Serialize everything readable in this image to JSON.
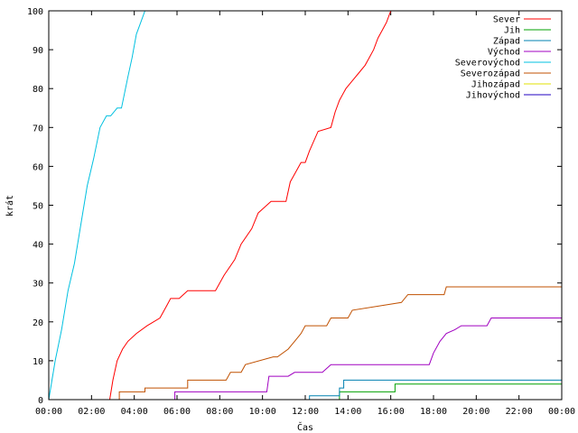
{
  "chart_data": {
    "type": "line",
    "title": "",
    "xlabel": "Čas",
    "ylabel": "krát",
    "xlim": [
      0,
      24
    ],
    "ylim": [
      0,
      100
    ],
    "xticks": [
      {
        "value": 0,
        "label": "00:00"
      },
      {
        "value": 2,
        "label": "02:00"
      },
      {
        "value": 4,
        "label": "04:00"
      },
      {
        "value": 6,
        "label": "06:00"
      },
      {
        "value": 8,
        "label": "08:00"
      },
      {
        "value": 10,
        "label": "10:00"
      },
      {
        "value": 12,
        "label": "12:00"
      },
      {
        "value": 14,
        "label": "14:00"
      },
      {
        "value": 16,
        "label": "16:00"
      },
      {
        "value": 18,
        "label": "18:00"
      },
      {
        "value": 20,
        "label": "20:00"
      },
      {
        "value": 22,
        "label": "22:00"
      },
      {
        "value": 24,
        "label": "00:00"
      }
    ],
    "yticks": [
      0,
      10,
      20,
      30,
      40,
      50,
      60,
      70,
      80,
      90,
      100
    ],
    "grid": false,
    "legend_position": "top-right",
    "series": [
      {
        "name": "Sever",
        "color": "#ff0000",
        "x": [
          2.85,
          3.0,
          3.2,
          3.45,
          3.7,
          4.1,
          4.6,
          4.9,
          5.2,
          5.5,
          5.7,
          6.1,
          6.5,
          7.8,
          8.2,
          8.7,
          9.0,
          9.5,
          9.8,
          10.0,
          10.4,
          11.1,
          11.3,
          11.5,
          11.8,
          12.0,
          12.2,
          12.6,
          13.2,
          13.4,
          13.6,
          13.9,
          14.2,
          14.5,
          14.8,
          15.0,
          15.2,
          15.4,
          15.6,
          15.8,
          16.0,
          16.2
        ],
        "y": [
          0,
          5,
          10,
          13,
          15,
          17,
          19,
          20,
          21,
          24,
          26,
          26,
          28,
          28,
          32,
          36,
          40,
          44,
          48,
          49,
          51,
          51,
          56,
          58,
          61,
          61,
          64,
          69,
          70,
          74,
          77,
          80,
          82,
          84,
          86,
          88,
          90,
          93,
          95,
          97,
          100,
          100
        ]
      },
      {
        "name": "Jih",
        "color": "#00a000",
        "x": [
          13.6,
          13.6,
          16.2,
          16.2,
          24
        ],
        "y": [
          0,
          2,
          2,
          4,
          4
        ]
      },
      {
        "name": "Západ",
        "color": "#0080b0",
        "x": [
          12.2,
          12.2,
          13.6,
          13.6,
          13.8,
          13.8,
          24
        ],
        "y": [
          0,
          1,
          1,
          3,
          3,
          5,
          5
        ]
      },
      {
        "name": "Východ",
        "color": "#a000c0",
        "x": [
          5.9,
          5.9,
          10.2,
          10.3,
          11.2,
          11.5,
          12.8,
          13.2,
          17.8,
          18.0,
          18.3,
          18.6,
          19.0,
          19.3,
          20.5,
          20.7,
          24
        ],
        "y": [
          0,
          2,
          2,
          6,
          6,
          7,
          7,
          9,
          9,
          12,
          15,
          17,
          18,
          19,
          19,
          21,
          21
        ]
      },
      {
        "name": "Severovýchod",
        "color": "#00c0e0",
        "x": [
          0,
          0.3,
          0.6,
          0.9,
          1.2,
          1.5,
          1.8,
          2.1,
          2.4,
          2.7,
          2.9,
          3.2,
          3.4,
          3.7,
          3.9,
          4.1,
          4.3,
          4.5,
          4.6
        ],
        "y": [
          0,
          10,
          18,
          28,
          35,
          45,
          55,
          62,
          70,
          73,
          73,
          75,
          75,
          83,
          88,
          94,
          97,
          100,
          100
        ]
      },
      {
        "name": "Severozápad",
        "color": "#c05000",
        "x": [
          3.3,
          3.3,
          4.5,
          4.5,
          6.5,
          6.5,
          8.3,
          8.5,
          9.0,
          9.2,
          10.5,
          10.7,
          11.2,
          11.5,
          11.8,
          12.0,
          13.0,
          13.2,
          14.0,
          14.2,
          16.5,
          16.8,
          18.5,
          18.6,
          24
        ],
        "y": [
          0,
          2,
          2,
          3,
          3,
          5,
          5,
          7,
          7,
          9,
          11,
          11,
          13,
          15,
          17,
          19,
          19,
          21,
          21,
          23,
          25,
          27,
          27,
          29,
          29
        ]
      },
      {
        "name": "Jihozápad",
        "color": "#e0e000",
        "x": [],
        "y": []
      },
      {
        "name": "Jihovýchod",
        "color": "#2000c0",
        "x": [],
        "y": []
      }
    ]
  }
}
